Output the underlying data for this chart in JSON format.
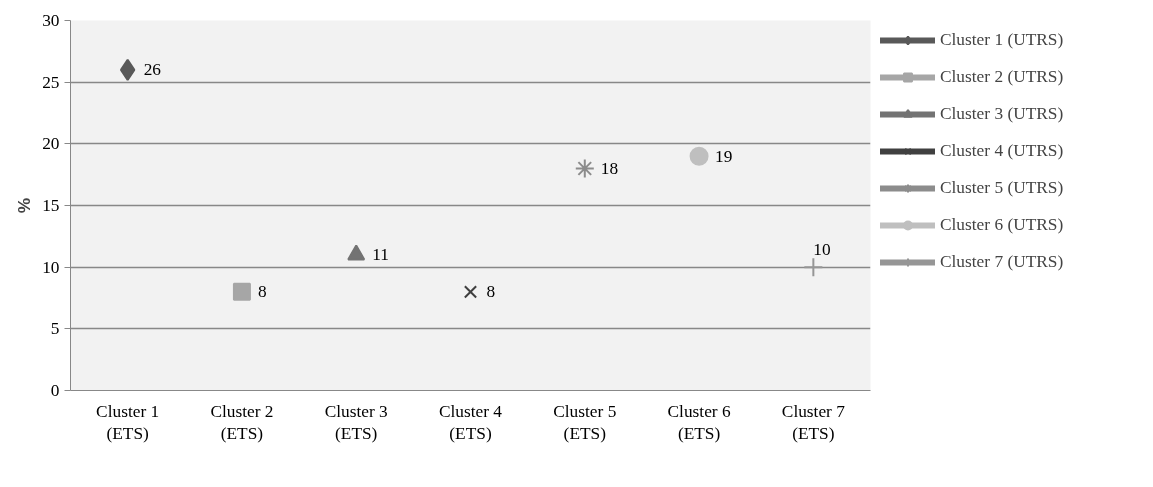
{
  "chart_data": {
    "type": "scatter",
    "ylabel": "%",
    "categories": [
      "Cluster 1 (ETS)",
      "Cluster 2 (ETS)",
      "Cluster 3 (ETS)",
      "Cluster 4 (ETS)",
      "Cluster 5 (ETS)",
      "Cluster 6 (ETS)",
      "Cluster 7 (ETS)"
    ],
    "series": [
      {
        "name": "Cluster 1 (UTRS)",
        "color": "#595959",
        "marker": "diamond",
        "values": [
          26,
          null,
          null,
          null,
          null,
          null,
          null
        ]
      },
      {
        "name": "Cluster 2 (UTRS)",
        "color": "#a6a6a6",
        "marker": "square",
        "values": [
          null,
          8,
          null,
          null,
          null,
          null,
          null
        ]
      },
      {
        "name": "Cluster 3 (UTRS)",
        "color": "#737373",
        "marker": "triangle",
        "values": [
          null,
          null,
          11,
          null,
          null,
          null,
          null
        ]
      },
      {
        "name": "Cluster 4 (UTRS)",
        "color": "#404040",
        "marker": "cross",
        "values": [
          null,
          null,
          null,
          8,
          null,
          null,
          null
        ]
      },
      {
        "name": "Cluster 5 (UTRS)",
        "color": "#8c8c8c",
        "marker": "cross",
        "values": [
          null,
          null,
          null,
          null,
          18,
          null,
          null
        ]
      },
      {
        "name": "Cluster 6 (UTRS)",
        "color": "#bfbfbf",
        "marker": "circle",
        "values": [
          null,
          null,
          null,
          null,
          null,
          19,
          null
        ]
      },
      {
        "name": "Cluster 7 (UTRS)",
        "color": "#969696",
        "marker": "cross",
        "values": [
          null,
          null,
          null,
          null,
          null,
          null,
          10
        ]
      }
    ],
    "ylim": [
      0,
      30
    ],
    "yticks": [
      0,
      5,
      10,
      15,
      20,
      25,
      30
    ],
    "grid": "y",
    "legend": "right",
    "data_labels": true
  }
}
